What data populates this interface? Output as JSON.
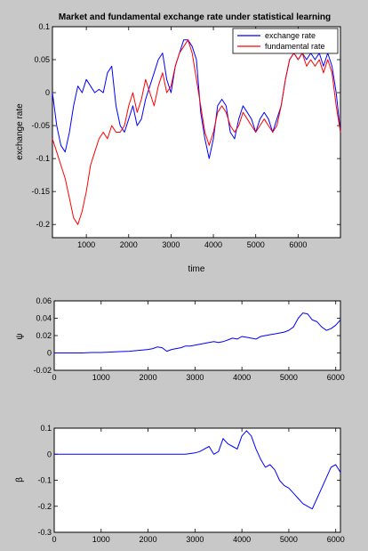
{
  "figure": {
    "background": "#c8c8c8",
    "axes_background": "#ffffff"
  },
  "chart_data": [
    {
      "type": "line",
      "title": "Market and fundamental exchange rate under statistical learning",
      "xlabel": "time",
      "ylabel": "exchange rate",
      "xlim": [
        200,
        7000
      ],
      "ylim": [
        -0.22,
        0.1
      ],
      "xticks": [
        1000,
        2000,
        3000,
        4000,
        5000,
        6000
      ],
      "yticks": [
        -0.2,
        -0.15,
        -0.1,
        -0.05,
        0,
        0.05,
        0.1
      ],
      "ytick_labels": [
        "-0.2",
        "-0.15",
        "-0.1",
        "-0.05",
        "0",
        "0.05",
        "0.1"
      ],
      "grid": false,
      "legend": "top-right",
      "series": [
        {
          "name": "exchange rate",
          "color": "#0000ff",
          "x": [
            200,
            300,
            400,
            500,
            600,
            700,
            800,
            900,
            1000,
            1100,
            1200,
            1300,
            1400,
            1500,
            1600,
            1700,
            1800,
            1900,
            2000,
            2100,
            2200,
            2300,
            2400,
            2500,
            2600,
            2700,
            2800,
            2900,
            3000,
            3100,
            3200,
            3300,
            3400,
            3500,
            3600,
            3700,
            3800,
            3900,
            4000,
            4100,
            4200,
            4300,
            4400,
            4500,
            4600,
            4700,
            4800,
            4900,
            5000,
            5100,
            5200,
            5300,
            5400,
            5500,
            5600,
            5700,
            5800,
            5900,
            6000,
            6100,
            6200,
            6300,
            6400,
            6500,
            6600,
            6700,
            6800,
            6900,
            7000
          ],
          "y": [
            0.0,
            -0.05,
            -0.08,
            -0.09,
            -0.06,
            -0.02,
            0.01,
            0.0,
            0.02,
            0.01,
            0.0,
            0.005,
            0.0,
            0.03,
            0.04,
            -0.02,
            -0.05,
            -0.06,
            -0.04,
            -0.02,
            -0.05,
            -0.04,
            -0.01,
            0.01,
            0.03,
            0.05,
            0.06,
            0.02,
            0.0,
            0.04,
            0.06,
            0.08,
            0.08,
            0.07,
            0.05,
            -0.03,
            -0.07,
            -0.1,
            -0.07,
            -0.02,
            -0.01,
            -0.02,
            -0.06,
            -0.07,
            -0.04,
            -0.02,
            -0.03,
            -0.04,
            -0.06,
            -0.04,
            -0.03,
            -0.04,
            -0.06,
            -0.04,
            -0.02,
            0.02,
            0.05,
            0.06,
            0.05,
            0.06,
            0.05,
            0.06,
            0.05,
            0.06,
            0.04,
            0.06,
            0.04,
            0.0,
            -0.06
          ]
        },
        {
          "name": "fundamental rate",
          "color": "#ff0000",
          "x": [
            200,
            300,
            400,
            500,
            600,
            700,
            800,
            900,
            1000,
            1100,
            1200,
            1300,
            1400,
            1500,
            1600,
            1700,
            1800,
            1900,
            2000,
            2100,
            2200,
            2300,
            2400,
            2500,
            2600,
            2700,
            2800,
            2900,
            3000,
            3100,
            3200,
            3300,
            3400,
            3500,
            3600,
            3700,
            3800,
            3900,
            4000,
            4100,
            4200,
            4300,
            4400,
            4500,
            4600,
            4700,
            4800,
            4900,
            5000,
            5100,
            5200,
            5300,
            5400,
            5500,
            5600,
            5700,
            5800,
            5900,
            6000,
            6100,
            6200,
            6300,
            6400,
            6500,
            6600,
            6700,
            6800,
            6900,
            7000
          ],
          "y": [
            -0.07,
            -0.09,
            -0.11,
            -0.13,
            -0.16,
            -0.19,
            -0.2,
            -0.18,
            -0.15,
            -0.11,
            -0.09,
            -0.07,
            -0.06,
            -0.07,
            -0.05,
            -0.06,
            -0.06,
            -0.05,
            -0.02,
            0.0,
            -0.03,
            -0.01,
            0.02,
            0.0,
            -0.02,
            0.01,
            0.03,
            0.0,
            0.01,
            0.04,
            0.06,
            0.07,
            0.08,
            0.06,
            0.02,
            -0.02,
            -0.06,
            -0.08,
            -0.06,
            -0.03,
            -0.02,
            -0.03,
            -0.05,
            -0.06,
            -0.05,
            -0.03,
            -0.04,
            -0.05,
            -0.06,
            -0.05,
            -0.04,
            -0.05,
            -0.06,
            -0.05,
            -0.02,
            0.02,
            0.05,
            0.06,
            0.05,
            0.06,
            0.04,
            0.05,
            0.04,
            0.05,
            0.03,
            0.05,
            0.03,
            -0.02,
            -0.06
          ]
        }
      ]
    },
    {
      "type": "line",
      "title": "",
      "xlabel": "",
      "ylabel": "ψ",
      "xlim": [
        0,
        6100
      ],
      "ylim": [
        -0.02,
        0.06
      ],
      "xticks": [
        0,
        1000,
        2000,
        3000,
        4000,
        5000,
        6000
      ],
      "yticks": [
        -0.02,
        0,
        0.02,
        0.04,
        0.06
      ],
      "ytick_labels": [
        "-0.02",
        "0",
        "0.02",
        "0.04",
        "0.06"
      ],
      "grid": false,
      "series": [
        {
          "color": "#0000ff",
          "x": [
            0,
            200,
            400,
            600,
            800,
            1000,
            1200,
            1400,
            1600,
            1800,
            2000,
            2100,
            2200,
            2300,
            2400,
            2500,
            2600,
            2700,
            2800,
            2900,
            3000,
            3100,
            3200,
            3300,
            3400,
            3500,
            3600,
            3700,
            3800,
            3900,
            4000,
            4100,
            4200,
            4300,
            4400,
            4500,
            4600,
            4700,
            4800,
            4900,
            5000,
            5100,
            5200,
            5300,
            5400,
            5500,
            5600,
            5700,
            5800,
            5900,
            6000,
            6100
          ],
          "y": [
            0.0,
            0.0,
            0.0,
            0.0,
            0.0005,
            0.0005,
            0.001,
            0.0015,
            0.002,
            0.003,
            0.004,
            0.005,
            0.007,
            0.006,
            0.002,
            0.004,
            0.005,
            0.006,
            0.008,
            0.008,
            0.009,
            0.01,
            0.011,
            0.012,
            0.013,
            0.012,
            0.013,
            0.015,
            0.017,
            0.016,
            0.019,
            0.018,
            0.017,
            0.016,
            0.019,
            0.02,
            0.021,
            0.022,
            0.023,
            0.024,
            0.026,
            0.03,
            0.04,
            0.046,
            0.045,
            0.038,
            0.036,
            0.03,
            0.026,
            0.028,
            0.032,
            0.038
          ]
        }
      ]
    },
    {
      "type": "line",
      "title": "",
      "xlabel": "",
      "ylabel": "β",
      "xlim": [
        0,
        6100
      ],
      "ylim": [
        -0.3,
        0.1
      ],
      "xticks": [
        0,
        1000,
        2000,
        3000,
        4000,
        5000,
        6000
      ],
      "yticks": [
        -0.3,
        -0.2,
        -0.1,
        0,
        0.1
      ],
      "ytick_labels": [
        "-0.3",
        "-0.2",
        "-0.1",
        "0",
        "0.1"
      ],
      "grid": false,
      "series": [
        {
          "color": "#0000ff",
          "x": [
            0,
            500,
            1000,
            1500,
            2000,
            2200,
            2400,
            2600,
            2800,
            3000,
            3100,
            3200,
            3300,
            3400,
            3500,
            3600,
            3700,
            3800,
            3900,
            4000,
            4100,
            4200,
            4300,
            4400,
            4500,
            4600,
            4700,
            4800,
            4900,
            5000,
            5100,
            5200,
            5300,
            5400,
            5500,
            5600,
            5700,
            5800,
            5900,
            6000,
            6100
          ],
          "y": [
            0.0,
            0.0,
            0.0,
            0.0,
            0.0,
            0.0,
            0.0,
            0.0,
            0.0,
            0.005,
            0.01,
            0.02,
            0.03,
            0.0,
            0.01,
            0.06,
            0.04,
            0.03,
            0.02,
            0.07,
            0.09,
            0.07,
            0.02,
            -0.02,
            -0.05,
            -0.04,
            -0.06,
            -0.1,
            -0.12,
            -0.13,
            -0.15,
            -0.17,
            -0.19,
            -0.2,
            -0.21,
            -0.17,
            -0.13,
            -0.09,
            -0.05,
            -0.04,
            -0.07
          ]
        }
      ]
    }
  ],
  "legend": {
    "items": [
      {
        "label": "exchange rate",
        "color": "#0000ff"
      },
      {
        "label": "fundamental rate",
        "color": "#ff0000"
      }
    ]
  }
}
